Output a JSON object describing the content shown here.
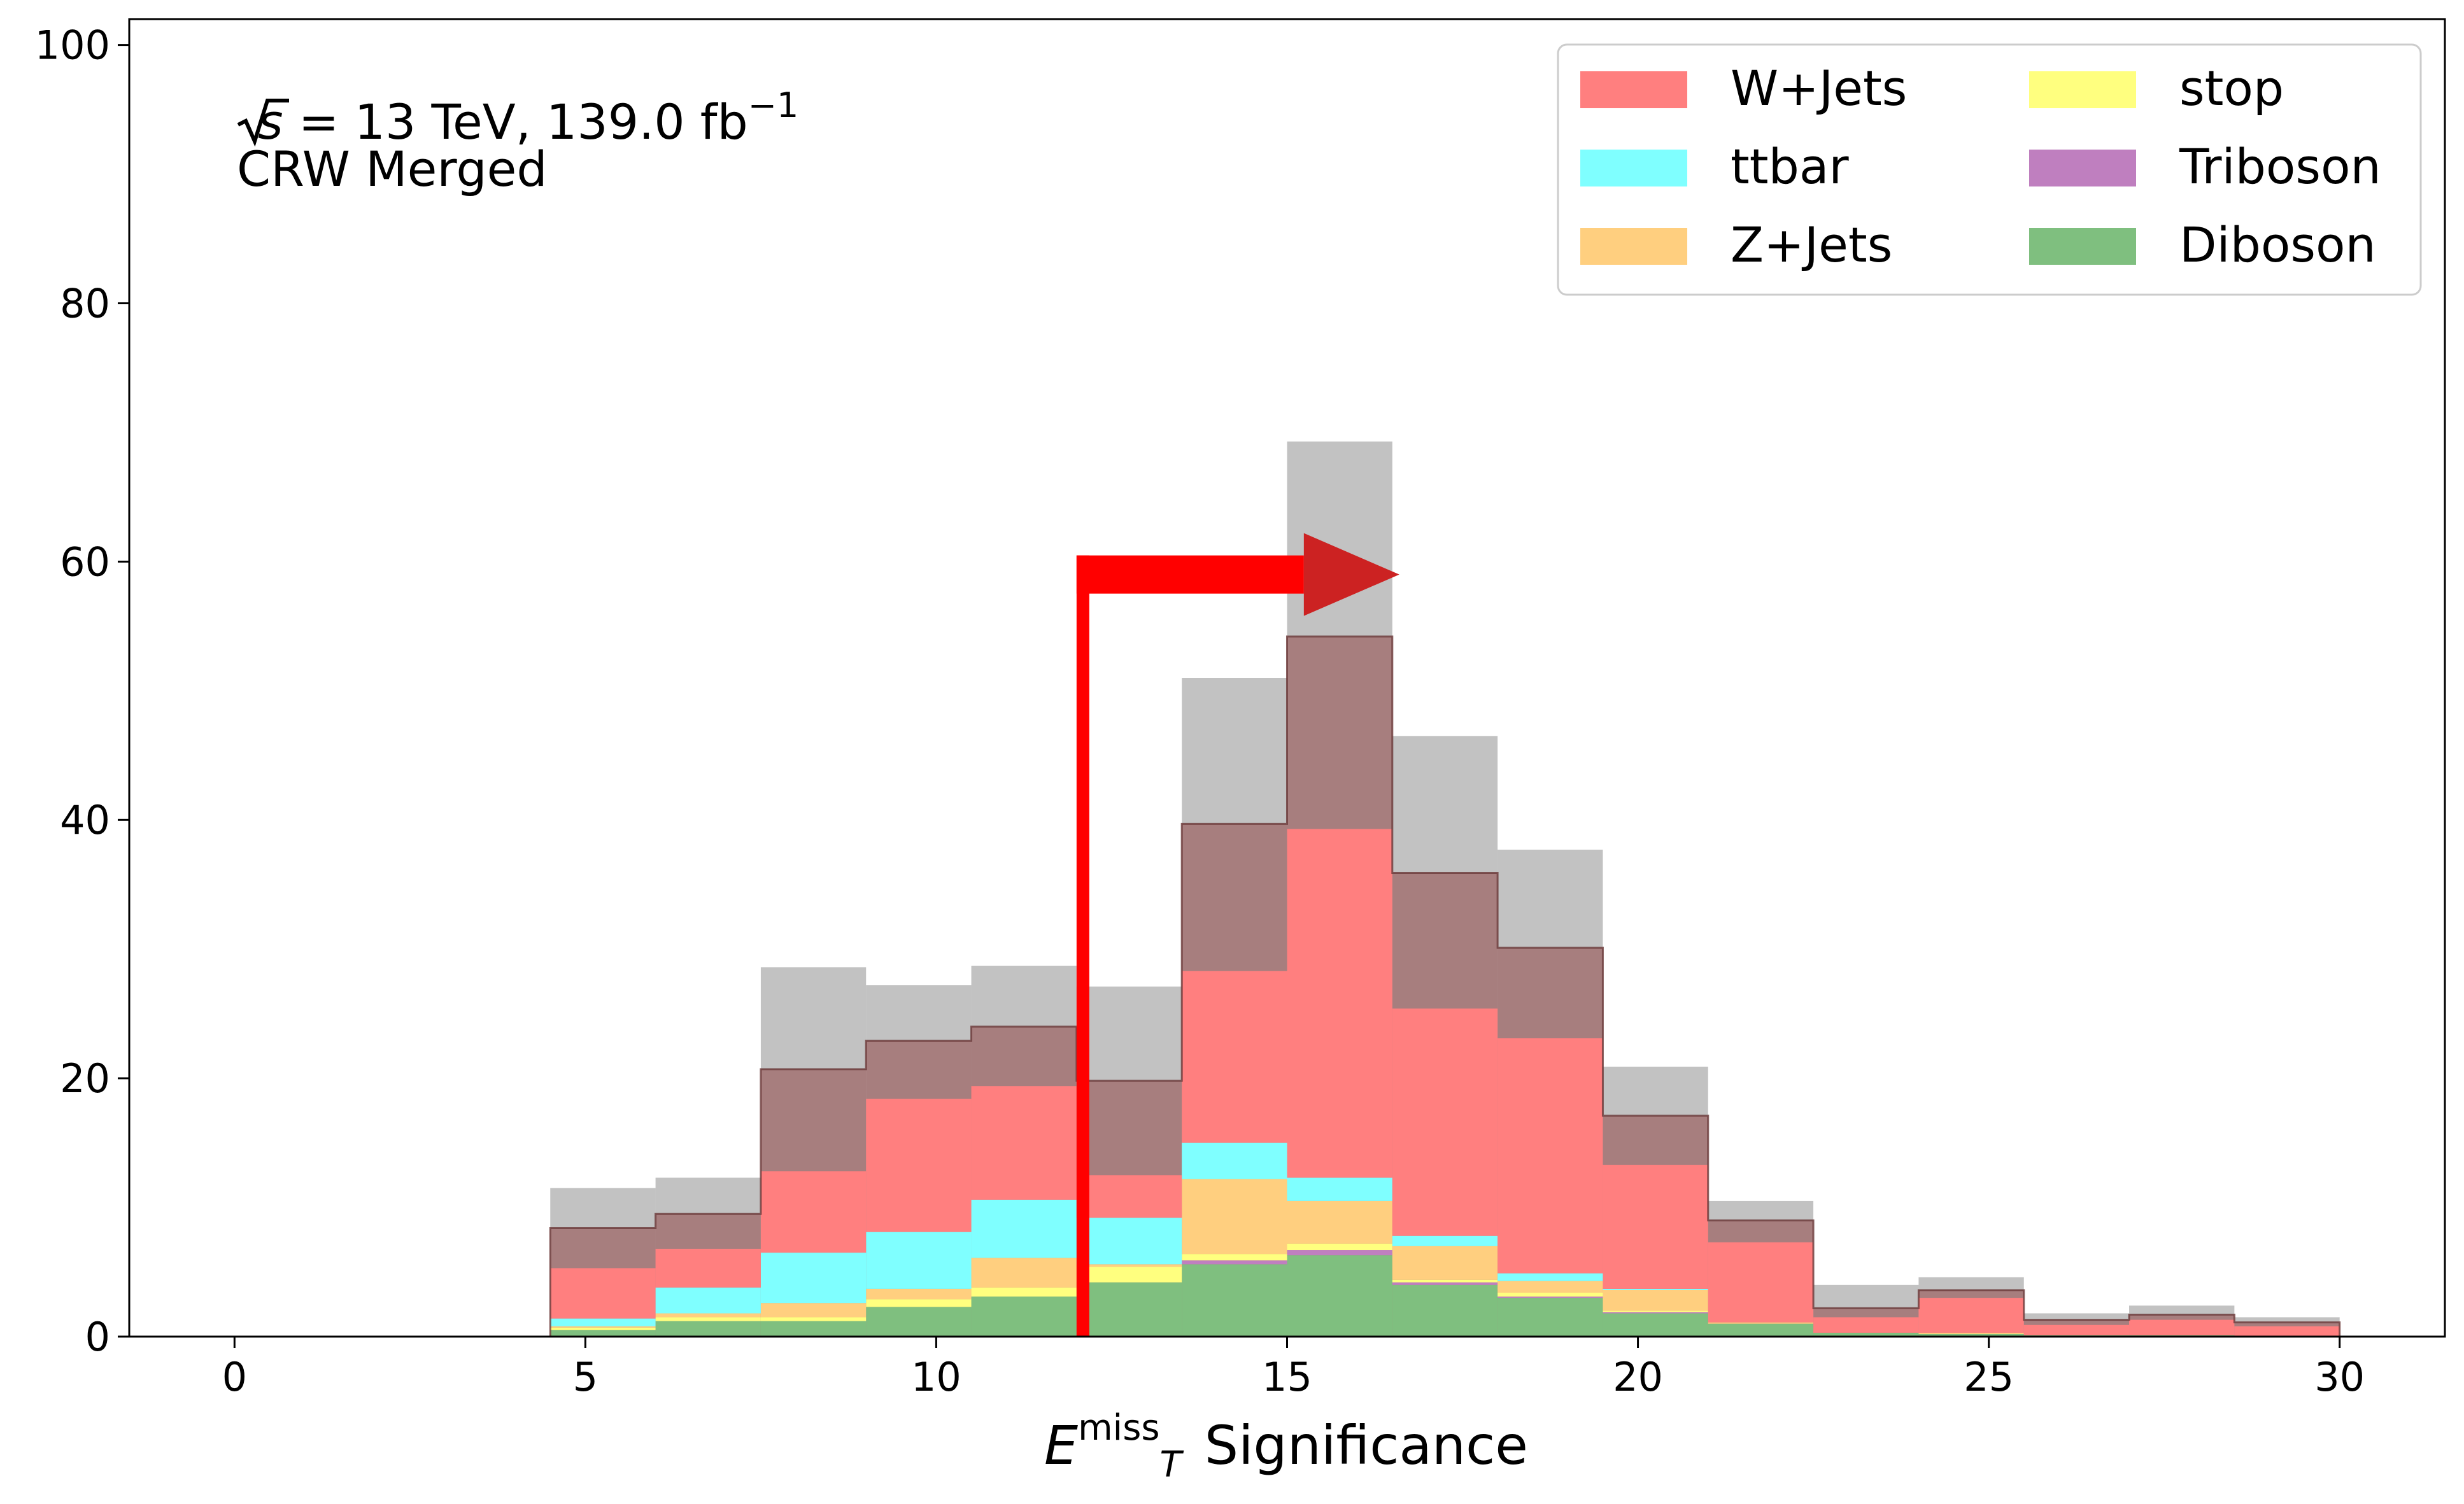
{
  "chart_data": {
    "type": "bar",
    "stacked": true,
    "bin_edges": [
      4.5,
      6,
      7.5,
      9,
      10.5,
      12,
      13.5,
      15,
      16.5,
      18,
      19.5,
      21,
      22.5,
      24,
      25.5,
      27,
      28.5,
      30
    ],
    "series": [
      {
        "name": "Diboson",
        "color": "#7fbf7f",
        "values": [
          0.5,
          1.2,
          1.2,
          2.3,
          3.1,
          4.2,
          5.6,
          6.3,
          4.0,
          3.0,
          1.8,
          1.0,
          0.3,
          0.2,
          0.1,
          0.1,
          0.0
        ]
      },
      {
        "name": "Triboson",
        "color": "#bf7fbf",
        "values": [
          0.0,
          0.0,
          0.0,
          0.0,
          0.0,
          0.0,
          0.3,
          0.4,
          0.2,
          0.1,
          0.1,
          0.0,
          0.0,
          0.0,
          0.0,
          0.0,
          0.0
        ]
      },
      {
        "name": "stop",
        "color": "#ffff7f",
        "values": [
          0.2,
          0.3,
          0.3,
          0.6,
          0.7,
          1.2,
          0.5,
          0.5,
          0.2,
          0.3,
          0.1,
          0.0,
          0.0,
          0.0,
          0.0,
          0.0,
          0.0
        ]
      },
      {
        "name": "Z+Jets",
        "color": "#ffcf7f",
        "values": [
          0.1,
          0.3,
          1.1,
          0.8,
          2.3,
          0.2,
          5.8,
          3.3,
          2.6,
          0.9,
          1.6,
          0.1,
          0.0,
          0.1,
          0.0,
          0.0,
          0.0
        ]
      },
      {
        "name": "ttbar",
        "color": "#7fffff",
        "values": [
          0.6,
          2.0,
          3.9,
          4.4,
          4.5,
          3.6,
          2.8,
          1.8,
          0.8,
          0.6,
          0.1,
          0.0,
          0.0,
          0.0,
          0.0,
          0.0,
          0.0
        ]
      },
      {
        "name": "W+Jets",
        "color": "#ff7f7f",
        "values": [
          3.9,
          3.0,
          6.3,
          10.3,
          8.8,
          3.3,
          13.3,
          27.0,
          17.6,
          18.2,
          9.6,
          6.2,
          1.2,
          2.7,
          0.8,
          1.2,
          0.8
        ]
      }
    ],
    "outlines": [
      {
        "color": "#8b3a3a",
        "alpha": 0.5,
        "values": [
          8.4,
          9.5,
          20.7,
          22.9,
          24.0,
          19.8,
          39.7,
          54.2,
          35.9,
          30.1,
          17.1,
          9.0,
          2.2,
          3.6,
          1.3,
          1.7,
          1.1
        ]
      },
      {
        "color": "#808080",
        "alpha": 0.48,
        "values": [
          11.5,
          12.3,
          28.6,
          27.2,
          28.7,
          27.1,
          51.0,
          69.3,
          46.5,
          37.7,
          20.9,
          10.5,
          4.0,
          4.6,
          1.8,
          2.4,
          1.5
        ]
      }
    ],
    "cut": {
      "value": 12,
      "arrow_to": 16.6,
      "arrow_level": 59,
      "color": "#ff0000",
      "head_color": "#cc2222"
    },
    "xlim": [
      -1.5,
      31.5
    ],
    "ylim": [
      0,
      102
    ],
    "xticks": [
      0,
      5,
      10,
      15,
      20,
      25,
      30
    ],
    "yticks": [
      0,
      20,
      40,
      60,
      80,
      100
    ],
    "xlabel": {
      "main": "E",
      "sub": "T",
      "sup": "miss",
      "rest": "Significance"
    },
    "ylabel": "",
    "annotation": {
      "sqrt_s": "s",
      "energy_text": " = 13 TeV, 139.0 fb",
      "lumi_exp": "−1",
      "region": "CRW Merged"
    },
    "legend": {
      "placement": "top-right",
      "columns": 2,
      "order": [
        "W+Jets",
        "ttbar",
        "Z+Jets",
        "stop",
        "Triboson",
        "Diboson"
      ]
    },
    "grid": false
  }
}
